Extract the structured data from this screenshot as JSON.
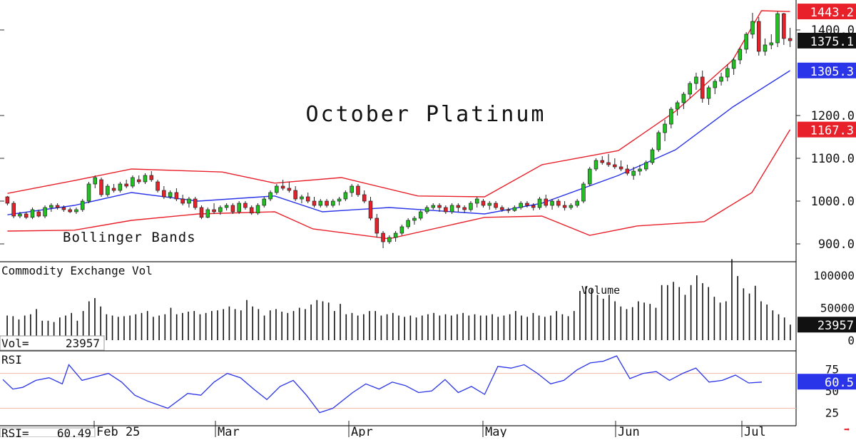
{
  "chart_data": {
    "type": "candlestick",
    "title": "October Platinum",
    "price_panel": {
      "annotation": "Bollinger Bands",
      "ylim": [
        870,
        1460
      ],
      "y_ticks": [
        {
          "value": 900,
          "label": "900.0"
        },
        {
          "value": 1000,
          "label": "1000.0"
        },
        {
          "value": 1100,
          "label": "1100.0"
        },
        {
          "value": 1200,
          "label": "1200.0"
        },
        {
          "value": 1400,
          "label": "1400.0"
        }
      ],
      "price_tags": [
        {
          "value": 1443.2,
          "label": "1443.2",
          "color": "#e8202a"
        },
        {
          "value": 1375.1,
          "label": "1375.1",
          "color": "#111111"
        },
        {
          "value": 1305.3,
          "label": "1305.3",
          "color": "#2a34e8"
        },
        {
          "value": 1167.3,
          "label": "1167.3",
          "color": "#e8202a"
        }
      ],
      "candles": [
        [
          1010,
          1012,
          990,
          995
        ],
        [
          995,
          1000,
          960,
          965
        ],
        [
          965,
          975,
          960,
          970
        ],
        [
          970,
          975,
          958,
          962
        ],
        [
          962,
          985,
          958,
          980
        ],
        [
          975,
          980,
          962,
          965
        ],
        [
          965,
          990,
          960,
          985
        ],
        [
          985,
          995,
          975,
          990
        ],
        [
          990,
          995,
          980,
          985
        ],
        [
          985,
          990,
          975,
          980
        ],
        [
          980,
          985,
          972,
          975
        ],
        [
          975,
          985,
          970,
          980
        ],
        [
          980,
          1005,
          975,
          1000
        ],
        [
          1000,
          1045,
          995,
          1040
        ],
        [
          1040,
          1060,
          1030,
          1055
        ],
        [
          1050,
          1055,
          1010,
          1015
        ],
        [
          1015,
          1040,
          1010,
          1035
        ],
        [
          1030,
          1040,
          1020,
          1025
        ],
        [
          1025,
          1045,
          1020,
          1040
        ],
        [
          1040,
          1050,
          1030,
          1035
        ],
        [
          1035,
          1060,
          1030,
          1055
        ],
        [
          1050,
          1060,
          1040,
          1045
        ],
        [
          1045,
          1065,
          1040,
          1060
        ],
        [
          1060,
          1070,
          1045,
          1050
        ],
        [
          1045,
          1050,
          1020,
          1025
        ],
        [
          1025,
          1035,
          1005,
          1010
        ],
        [
          1010,
          1025,
          1005,
          1020
        ],
        [
          1020,
          1030,
          1000,
          1005
        ],
        [
          1005,
          1015,
          990,
          995
        ],
        [
          995,
          1010,
          985,
          1005
        ],
        [
          1005,
          1010,
          980,
          985
        ],
        [
          985,
          990,
          958,
          962
        ],
        [
          962,
          985,
          960,
          980
        ],
        [
          980,
          995,
          970,
          975
        ],
        [
          975,
          990,
          968,
          985
        ],
        [
          985,
          995,
          978,
          990
        ],
        [
          990,
          995,
          970,
          975
        ],
        [
          975,
          1000,
          970,
          995
        ],
        [
          995,
          1000,
          980,
          985
        ],
        [
          985,
          990,
          968,
          972
        ],
        [
          972,
          995,
          968,
          990
        ],
        [
          990,
          1010,
          985,
          1005
        ],
        [
          1005,
          1025,
          1000,
          1020
        ],
        [
          1020,
          1040,
          1015,
          1035
        ],
        [
          1035,
          1050,
          1025,
          1030
        ],
        [
          1030,
          1045,
          1020,
          1025
        ],
        [
          1025,
          1035,
          1000,
          1005
        ],
        [
          1005,
          1015,
          995,
          1010
        ],
        [
          1010,
          1020,
          995,
          1000
        ],
        [
          1000,
          1010,
          985,
          990
        ],
        [
          990,
          1005,
          985,
          1000
        ],
        [
          1000,
          1005,
          985,
          990
        ],
        [
          990,
          1005,
          985,
          1000
        ],
        [
          1000,
          1010,
          990,
          1005
        ],
        [
          1005,
          1025,
          1000,
          1020
        ],
        [
          1020,
          1040,
          1010,
          1035
        ],
        [
          1035,
          1040,
          1010,
          1015
        ],
        [
          1015,
          1025,
          995,
          1000
        ],
        [
          1000,
          1010,
          955,
          960
        ],
        [
          960,
          970,
          915,
          925
        ],
        [
          925,
          930,
          890,
          905
        ],
        [
          905,
          920,
          900,
          915
        ],
        [
          915,
          930,
          905,
          925
        ],
        [
          925,
          945,
          920,
          940
        ],
        [
          940,
          960,
          935,
          955
        ],
        [
          955,
          965,
          945,
          960
        ],
        [
          960,
          980,
          955,
          975
        ],
        [
          975,
          990,
          970,
          985
        ],
        [
          985,
          995,
          980,
          990
        ],
        [
          990,
          995,
          975,
          985
        ],
        [
          985,
          990,
          970,
          975
        ],
        [
          975,
          995,
          970,
          990
        ],
        [
          990,
          995,
          975,
          985
        ],
        [
          985,
          990,
          972,
          980
        ],
        [
          980,
          1000,
          975,
          995
        ],
        [
          995,
          1010,
          985,
          1005
        ],
        [
          1000,
          1005,
          985,
          990
        ],
        [
          990,
          1000,
          980,
          995
        ],
        [
          995,
          1000,
          980,
          985
        ],
        [
          985,
          990,
          975,
          980
        ],
        [
          980,
          985,
          972,
          978
        ],
        [
          978,
          990,
          975,
          985
        ],
        [
          985,
          1000,
          980,
          995
        ],
        [
          995,
          1000,
          985,
          990
        ],
        [
          990,
          995,
          978,
          985
        ],
        [
          985,
          1010,
          980,
          1005
        ],
        [
          1005,
          1015,
          985,
          990
        ],
        [
          990,
          1005,
          980,
          1000
        ],
        [
          1000,
          1005,
          985,
          990
        ],
        [
          990,
          1000,
          978,
          985
        ],
        [
          985,
          995,
          980,
          990
        ],
        [
          990,
          1005,
          985,
          1000
        ],
        [
          1000,
          1045,
          995,
          1040
        ],
        [
          1040,
          1080,
          1035,
          1075
        ],
        [
          1075,
          1100,
          1070,
          1095
        ],
        [
          1095,
          1105,
          1085,
          1090
        ],
        [
          1090,
          1110,
          1080,
          1085
        ],
        [
          1085,
          1100,
          1075,
          1080
        ],
        [
          1080,
          1095,
          1070,
          1075
        ],
        [
          1075,
          1085,
          1060,
          1065
        ],
        [
          1060,
          1080,
          1050,
          1070
        ],
        [
          1070,
          1085,
          1060,
          1075
        ],
        [
          1075,
          1095,
          1070,
          1090
        ],
        [
          1090,
          1125,
          1085,
          1120
        ],
        [
          1120,
          1165,
          1115,
          1160
        ],
        [
          1160,
          1190,
          1140,
          1180
        ],
        [
          1180,
          1220,
          1170,
          1215
        ],
        [
          1215,
          1235,
          1200,
          1230
        ],
        [
          1230,
          1255,
          1215,
          1250
        ],
        [
          1250,
          1280,
          1240,
          1275
        ],
        [
          1275,
          1300,
          1260,
          1290
        ],
        [
          1290,
          1305,
          1230,
          1240
        ],
        [
          1240,
          1270,
          1225,
          1265
        ],
        [
          1265,
          1285,
          1250,
          1280
        ],
        [
          1280,
          1300,
          1270,
          1290
        ],
        [
          1290,
          1320,
          1280,
          1310
        ],
        [
          1310,
          1335,
          1295,
          1330
        ],
        [
          1330,
          1360,
          1320,
          1355
        ],
        [
          1355,
          1395,
          1345,
          1390
        ],
        [
          1390,
          1440,
          1380,
          1420
        ],
        [
          1420,
          1430,
          1340,
          1350
        ],
        [
          1350,
          1380,
          1340,
          1365
        ],
        [
          1365,
          1390,
          1355,
          1370
        ],
        [
          1370,
          1443,
          1360,
          1438
        ],
        [
          1438,
          1440,
          1365,
          1380
        ],
        [
          1380,
          1405,
          1360,
          1375
        ]
      ],
      "upper_band": [
        [
          0,
          1018
        ],
        [
          14,
          1048
        ],
        [
          26,
          1075
        ],
        [
          45,
          1068
        ],
        [
          56,
          1042
        ],
        [
          70,
          1055
        ],
        [
          86,
          1012
        ],
        [
          100,
          1010
        ],
        [
          112,
          1085
        ],
        [
          128,
          1118
        ],
        [
          140,
          1210
        ],
        [
          152,
          1330
        ],
        [
          158,
          1445
        ],
        [
          164,
          1443
        ]
      ],
      "middle_band": [
        [
          0,
          968
        ],
        [
          14,
          990
        ],
        [
          26,
          1020
        ],
        [
          40,
          1000
        ],
        [
          56,
          1012
        ],
        [
          66,
          975
        ],
        [
          80,
          985
        ],
        [
          100,
          970
        ],
        [
          112,
          995
        ],
        [
          128,
          1060
        ],
        [
          140,
          1120
        ],
        [
          152,
          1220
        ],
        [
          164,
          1305
        ]
      ],
      "lower_band": [
        [
          0,
          930
        ],
        [
          14,
          932
        ],
        [
          26,
          955
        ],
        [
          40,
          970
        ],
        [
          56,
          975
        ],
        [
          64,
          935
        ],
        [
          80,
          912
        ],
        [
          100,
          962
        ],
        [
          112,
          965
        ],
        [
          122,
          920
        ],
        [
          132,
          942
        ],
        [
          146,
          952
        ],
        [
          156,
          1020
        ],
        [
          164,
          1167
        ]
      ]
    },
    "volume_panel": {
      "title": "Commodity Exchange Vol",
      "annotation": "Volume",
      "readout": "23957",
      "readout_label": "Vol=",
      "ylim": [
        0,
        120000
      ],
      "y_ticks": [
        {
          "value": 0,
          "label": "0"
        },
        {
          "value": 50000,
          "label": "50000"
        },
        {
          "value": 100000,
          "label": "100000"
        }
      ],
      "tag": {
        "value": 23957,
        "label": "23957",
        "color": "#111111"
      },
      "values": [
        38000,
        37000,
        32000,
        38000,
        40000,
        48000,
        30000,
        30000,
        28000,
        35000,
        38000,
        42000,
        30000,
        45000,
        60000,
        65000,
        52000,
        40000,
        38000,
        36000,
        37000,
        38000,
        40000,
        42000,
        45000,
        36000,
        38000,
        40000,
        50000,
        40000,
        42000,
        44000,
        45000,
        40000,
        42000,
        45000,
        46000,
        48000,
        52000,
        48000,
        46000,
        62000,
        52000,
        48000,
        38000,
        46000,
        48000,
        44000,
        42000,
        45000,
        50000,
        48000,
        55000,
        62000,
        60000,
        58000,
        45000,
        56000,
        40000,
        42000,
        38000,
        40000,
        45000,
        45000,
        38000,
        40000,
        42000,
        38000,
        36000,
        38000,
        35000,
        38000,
        40000,
        42000,
        38000,
        40000,
        38000,
        40000,
        42000,
        38000,
        40000,
        38000,
        38000,
        40000,
        36000,
        38000,
        40000,
        45000,
        38000,
        36000,
        42000,
        38000,
        36000,
        38000,
        45000,
        40000,
        37000,
        45000,
        76000,
        83000,
        79000,
        70000,
        64000,
        70000,
        60000,
        52000,
        48000,
        51000,
        60000,
        58000,
        56000,
        50000,
        85000,
        85000,
        90000,
        82000,
        70000,
        85000,
        100000,
        88000,
        82000,
        67000,
        58000,
        60000,
        125000,
        99000,
        80000,
        72000,
        84000,
        60000,
        55000,
        46000,
        40000,
        35000,
        24000
      ]
    },
    "rsi_panel": {
      "title": "RSI",
      "readout": "60.49",
      "readout_label": "RSI=",
      "ylim": [
        10,
        95
      ],
      "y_ticks": [
        {
          "value": 25,
          "label": "25"
        },
        {
          "value": 50,
          "label": "50"
        },
        {
          "value": 75,
          "label": "75"
        }
      ],
      "reference_lines": [
        30,
        70
      ],
      "tag": {
        "value": 60.5,
        "label": "60.5",
        "color": "#2a34e8"
      },
      "values": [
        [
          0,
          63
        ],
        [
          3,
          52
        ],
        [
          6,
          54
        ],
        [
          10,
          62
        ],
        [
          14,
          65
        ],
        [
          18,
          58
        ],
        [
          20,
          80
        ],
        [
          24,
          62
        ],
        [
          28,
          66
        ],
        [
          32,
          70
        ],
        [
          36,
          60
        ],
        [
          40,
          45
        ],
        [
          44,
          38
        ],
        [
          50,
          30
        ],
        [
          56,
          47
        ],
        [
          60,
          45
        ],
        [
          64,
          60
        ],
        [
          68,
          70
        ],
        [
          72,
          65
        ],
        [
          76,
          52
        ],
        [
          80,
          40
        ],
        [
          84,
          55
        ],
        [
          88,
          62
        ],
        [
          92,
          45
        ],
        [
          96,
          25
        ],
        [
          100,
          30
        ],
        [
          106,
          48
        ],
        [
          110,
          58
        ],
        [
          114,
          52
        ],
        [
          118,
          60
        ],
        [
          122,
          56
        ],
        [
          126,
          48
        ],
        [
          130,
          50
        ],
        [
          134,
          63
        ],
        [
          138,
          48
        ],
        [
          142,
          55
        ],
        [
          146,
          46
        ],
        [
          150,
          78
        ],
        [
          154,
          76
        ],
        [
          158,
          80
        ],
        [
          162,
          70
        ],
        [
          166,
          58
        ],
        [
          170,
          62
        ],
        [
          174,
          74
        ],
        [
          178,
          82
        ],
        [
          182,
          84
        ],
        [
          186,
          90
        ],
        [
          190,
          64
        ],
        [
          194,
          70
        ],
        [
          198,
          72
        ],
        [
          202,
          62
        ],
        [
          206,
          70
        ],
        [
          210,
          76
        ],
        [
          214,
          60
        ],
        [
          218,
          62
        ],
        [
          222,
          68
        ],
        [
          226,
          59
        ],
        [
          230,
          60
        ]
      ]
    },
    "x_axis": {
      "labels": [
        "Feb 25",
        "Mar",
        "Apr",
        "May",
        "Jun",
        "Jul"
      ]
    },
    "nav_arrow": {
      "symbol": "➡",
      "color": "#e8202a"
    }
  }
}
